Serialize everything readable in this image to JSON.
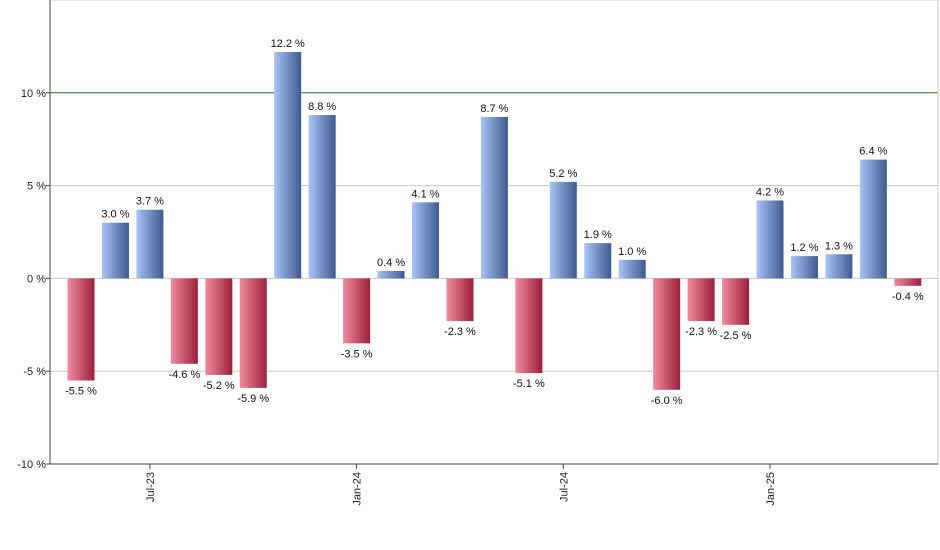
{
  "chart_data": {
    "type": "bar",
    "categories": [
      "",
      "",
      "Jul-23",
      "",
      "",
      "",
      "",
      "",
      "Jan-24",
      "",
      "",
      "",
      "",
      "",
      "Jul-24",
      "",
      "",
      "",
      "",
      "",
      "Jan-25",
      "",
      "",
      "",
      ""
    ],
    "values": [
      -5.5,
      3.0,
      3.7,
      -4.6,
      -5.2,
      -5.9,
      12.2,
      8.8,
      -3.5,
      0.4,
      4.1,
      -2.3,
      8.7,
      -5.1,
      5.2,
      1.9,
      1.0,
      -6.0,
      -2.3,
      -2.5,
      4.2,
      1.2,
      1.3,
      6.4,
      -0.4
    ],
    "labels": [
      "-5.5 %",
      "3.0 %",
      "3.7 %",
      "-4.6 %",
      "-5.2 %",
      "-5.9 %",
      "12.2 %",
      "8.8 %",
      "-3.5 %",
      "0.4 %",
      "4.1 %",
      "-2.3 %",
      "8.7 %",
      "-5.1 %",
      "5.2 %",
      "1.9 %",
      "1.0 %",
      "-6.0 %",
      "-2.3 %",
      "-2.5 %",
      "4.2 %",
      "1.2 %",
      "1.3 %",
      "6.4 %",
      "-0.4 %"
    ],
    "ylim": [
      -10,
      15
    ],
    "yticks": [
      -10,
      -5,
      0,
      5,
      10
    ],
    "ytick_labels": [
      "-10 %",
      "-5 %",
      "0 %",
      "5 %",
      "10 %"
    ],
    "reference_line": 10,
    "grid": true,
    "colors": {
      "positive_light": "#a9c4f5",
      "positive_dark": "#3d5a8f",
      "negative_light": "#f08ca0",
      "negative_dark": "#9c1f3a",
      "reference": "#2e6b2e",
      "grid": "#c8c8c8",
      "axis": "#444444"
    }
  }
}
